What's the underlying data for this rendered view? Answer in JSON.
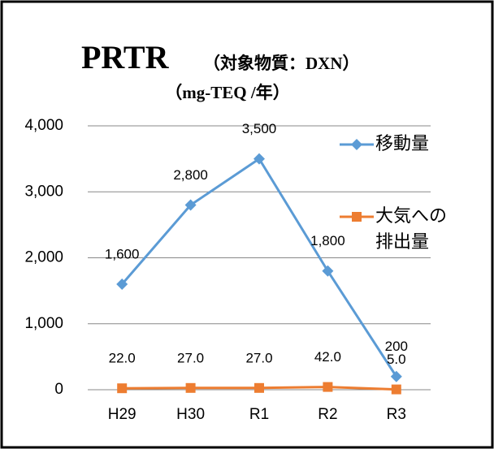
{
  "chart_data": {
    "type": "line",
    "title": "PRTR",
    "subtitle": "（対象物質：DXN）",
    "unit": "（mg-TEQ /年）",
    "categories": [
      "H29",
      "H30",
      "R1",
      "R2",
      "R3"
    ],
    "series": [
      {
        "name": "移動量",
        "color": "#5b9bd5",
        "marker": "diamond",
        "values": [
          1600,
          2800,
          3500,
          1800,
          200
        ],
        "value_labels": [
          "1,600",
          "2,800",
          "3,500",
          "1,800",
          "200"
        ]
      },
      {
        "name": "大気への排出量",
        "color": "#ed7d31",
        "marker": "square",
        "values": [
          22,
          27,
          27,
          42,
          5
        ],
        "value_labels": [
          "22.0",
          "27.0",
          "27.0",
          "42.0",
          "5.0"
        ]
      }
    ],
    "ylim": [
      0,
      4000
    ],
    "yticks": [
      0,
      {
        "value": 1000,
        "label": "1,000"
      },
      {
        "value": 2000,
        "label": "2,000"
      },
      {
        "value": 3000,
        "label": "3,000"
      },
      {
        "value": 4000,
        "label": "4,000"
      }
    ],
    "grid": true
  }
}
